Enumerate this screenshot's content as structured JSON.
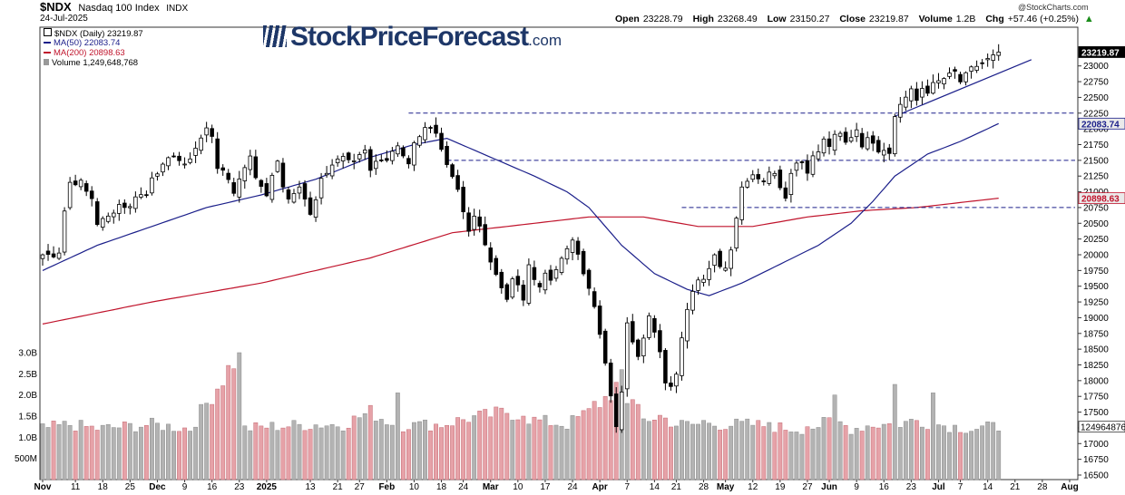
{
  "header": {
    "symbol": "$NDX",
    "name": "Nasdaq 100 Index",
    "exchange": "INDX",
    "date": "24-Jul-2025",
    "credit": "@StockCharts.com",
    "open_label": "Open",
    "open": "23228.79",
    "high_label": "High",
    "high": "23268.49",
    "low_label": "Low",
    "low": "23150.27",
    "close_label": "Close",
    "close": "23219.87",
    "volume_label": "Volume",
    "volume": "1.2B",
    "chg_label": "Chg",
    "chg": "+57.46 (+0.25%)",
    "chg_icon": "up-arrow-icon"
  },
  "watermark": {
    "main": "StockPriceForecast",
    "suffix": ".com"
  },
  "legend": [
    {
      "text": "$NDX (Daily) 23219.87",
      "color": "#000000"
    },
    {
      "text": "MA(50) 22083.74",
      "color": "#1b1f8a"
    },
    {
      "text": "MA(200) 20898.63",
      "color": "#c0142c"
    },
    {
      "text": "Volume 1,249,648,768",
      "color": "#000000"
    }
  ],
  "chart_data": {
    "type": "candlestick",
    "title": "$NDX (Daily)",
    "price_axis": {
      "min": 16500,
      "max": 23500,
      "ticks": [
        16500,
        16750,
        17000,
        17250,
        17500,
        17750,
        18000,
        18250,
        18500,
        18750,
        19000,
        19250,
        19500,
        19750,
        20000,
        20250,
        20500,
        20750,
        21000,
        21250,
        21500,
        21750,
        22000,
        22250,
        22500,
        22750,
        23000
      ]
    },
    "volume_axis": {
      "min": 0,
      "max": 3.3,
      "unit": "B",
      "ticks": [
        {
          "v": 0.5,
          "label": "500M"
        },
        {
          "v": 1.0,
          "label": "1.0B"
        },
        {
          "v": 1.5,
          "label": "1.5B"
        },
        {
          "v": 2.0,
          "label": "2.0B"
        },
        {
          "v": 2.5,
          "label": "2.5B"
        },
        {
          "v": 3.0,
          "label": "3.0B"
        }
      ]
    },
    "x_labels": [
      {
        "label": "Nov",
        "i": 0
      },
      {
        "label": "11",
        "i": 6
      },
      {
        "label": "18",
        "i": 11
      },
      {
        "label": "25",
        "i": 16
      },
      {
        "label": "Dec",
        "i": 21
      },
      {
        "label": "9",
        "i": 26
      },
      {
        "label": "16",
        "i": 31
      },
      {
        "label": "23",
        "i": 36
      },
      {
        "label": "2025",
        "i": 41
      },
      {
        "label": "13",
        "i": 49
      },
      {
        "label": "21",
        "i": 54
      },
      {
        "label": "27",
        "i": 58
      },
      {
        "label": "Feb",
        "i": 63
      },
      {
        "label": "10",
        "i": 68
      },
      {
        "label": "18",
        "i": 73
      },
      {
        "label": "24",
        "i": 77
      },
      {
        "label": "Mar",
        "i": 82
      },
      {
        "label": "10",
        "i": 87
      },
      {
        "label": "17",
        "i": 92
      },
      {
        "label": "24",
        "i": 97
      },
      {
        "label": "Apr",
        "i": 102
      },
      {
        "label": "7",
        "i": 107
      },
      {
        "label": "14",
        "i": 112
      },
      {
        "label": "21",
        "i": 116
      },
      {
        "label": "28",
        "i": 121
      },
      {
        "label": "May",
        "i": 125
      },
      {
        "label": "12",
        "i": 130
      },
      {
        "label": "19",
        "i": 135
      },
      {
        "label": "27",
        "i": 140
      },
      {
        "label": "Jun",
        "i": 144
      },
      {
        "label": "9",
        "i": 149
      },
      {
        "label": "16",
        "i": 154
      },
      {
        "label": "23",
        "i": 159
      },
      {
        "label": "Jul",
        "i": 164
      },
      {
        "label": "7",
        "i": 168
      },
      {
        "label": "14",
        "i": 173
      },
      {
        "label": "21",
        "i": 178
      },
      {
        "label": "28",
        "i": 183
      },
      {
        "label": "Aug",
        "i": 188
      }
    ],
    "close_anchors": [
      [
        0,
        20000
      ],
      [
        2,
        20000
      ],
      [
        3,
        20050
      ],
      [
        4,
        20700
      ],
      [
        5,
        21150
      ],
      [
        7,
        21150
      ],
      [
        8,
        21000
      ],
      [
        9,
        20900
      ],
      [
        10,
        20500
      ],
      [
        12,
        20600
      ],
      [
        14,
        20800
      ],
      [
        16,
        20750
      ],
      [
        17,
        20950
      ],
      [
        19,
        20950
      ],
      [
        20,
        21250
      ],
      [
        22,
        21400
      ],
      [
        24,
        21600
      ],
      [
        26,
        21400
      ],
      [
        28,
        21700
      ],
      [
        30,
        22000
      ],
      [
        31,
        21900
      ],
      [
        32,
        21400
      ],
      [
        34,
        21200
      ],
      [
        35,
        21000
      ],
      [
        36,
        21200
      ],
      [
        37,
        21400
      ],
      [
        38,
        21600
      ],
      [
        39,
        21200
      ],
      [
        40,
        21100
      ],
      [
        41,
        20950
      ],
      [
        42,
        21300
      ],
      [
        43,
        21450
      ],
      [
        44,
        21100
      ],
      [
        45,
        20850
      ],
      [
        47,
        21100
      ],
      [
        49,
        20650
      ],
      [
        50,
        20850
      ],
      [
        51,
        21200
      ],
      [
        53,
        21450
      ],
      [
        55,
        21600
      ],
      [
        57,
        21500
      ],
      [
        59,
        21650
      ],
      [
        60,
        21300
      ],
      [
        61,
        21500
      ],
      [
        63,
        21500
      ],
      [
        64,
        21650
      ],
      [
        65,
        21700
      ],
      [
        67,
        21450
      ],
      [
        68,
        21800
      ],
      [
        70,
        22000
      ],
      [
        71,
        22050
      ],
      [
        72,
        21950
      ],
      [
        73,
        21650
      ],
      [
        74,
        21400
      ],
      [
        75,
        21200
      ],
      [
        76,
        21000
      ],
      [
        77,
        20650
      ],
      [
        78,
        20350
      ],
      [
        79,
        20600
      ],
      [
        80,
        20450
      ],
      [
        81,
        20200
      ],
      [
        82,
        19900
      ],
      [
        83,
        19700
      ],
      [
        84,
        19500
      ],
      [
        85,
        19300
      ],
      [
        86,
        19600
      ],
      [
        87,
        19500
      ],
      [
        88,
        19300
      ],
      [
        89,
        19800
      ],
      [
        90,
        19650
      ],
      [
        91,
        19500
      ],
      [
        92,
        19700
      ],
      [
        93,
        19600
      ],
      [
        94,
        19800
      ],
      [
        95,
        19900
      ],
      [
        96,
        20100
      ],
      [
        97,
        20200
      ],
      [
        98,
        20000
      ],
      [
        99,
        19700
      ],
      [
        100,
        19500
      ],
      [
        101,
        19150
      ],
      [
        102,
        18700
      ],
      [
        103,
        18300
      ],
      [
        104,
        17800
      ],
      [
        105,
        17300
      ],
      [
        106,
        17800
      ],
      [
        107,
        18900
      ],
      [
        108,
        18600
      ],
      [
        109,
        18350
      ],
      [
        110,
        18700
      ],
      [
        111,
        19000
      ],
      [
        112,
        18800
      ],
      [
        113,
        18500
      ],
      [
        114,
        18000
      ],
      [
        115,
        17950
      ],
      [
        116,
        18100
      ],
      [
        117,
        18650
      ],
      [
        118,
        19100
      ],
      [
        119,
        19450
      ],
      [
        120,
        19600
      ],
      [
        121,
        19650
      ],
      [
        122,
        19800
      ],
      [
        123,
        20000
      ],
      [
        124,
        19850
      ],
      [
        125,
        19800
      ],
      [
        126,
        20100
      ],
      [
        127,
        20600
      ],
      [
        128,
        21050
      ],
      [
        129,
        21200
      ],
      [
        130,
        21300
      ],
      [
        131,
        21250
      ],
      [
        132,
        21150
      ],
      [
        133,
        21350
      ],
      [
        134,
        21300
      ],
      [
        135,
        21100
      ],
      [
        136,
        20900
      ],
      [
        137,
        21300
      ],
      [
        138,
        21500
      ],
      [
        139,
        21450
      ],
      [
        140,
        21300
      ],
      [
        141,
        21550
      ],
      [
        142,
        21650
      ],
      [
        143,
        21800
      ],
      [
        144,
        21700
      ],
      [
        145,
        21900
      ],
      [
        146,
        21950
      ],
      [
        147,
        21800
      ],
      [
        148,
        21900
      ],
      [
        149,
        21950
      ],
      [
        150,
        21750
      ],
      [
        151,
        21900
      ],
      [
        152,
        21800
      ],
      [
        153,
        21650
      ],
      [
        154,
        21700
      ],
      [
        155,
        21600
      ],
      [
        156,
        22200
      ],
      [
        157,
        22400
      ],
      [
        158,
        22500
      ],
      [
        159,
        22600
      ],
      [
        160,
        22450
      ],
      [
        161,
        22650
      ],
      [
        162,
        22600
      ],
      [
        163,
        22700
      ],
      [
        164,
        22750
      ],
      [
        165,
        22800
      ],
      [
        166,
        22850
      ],
      [
        167,
        22900
      ],
      [
        168,
        22750
      ],
      [
        169,
        22850
      ],
      [
        170,
        22950
      ],
      [
        171,
        23000
      ],
      [
        172,
        23050
      ],
      [
        173,
        23100
      ],
      [
        174,
        23150
      ],
      [
        175,
        23219.87
      ]
    ],
    "volume_anchors": [
      [
        0,
        1.2
      ],
      [
        5,
        1.3
      ],
      [
        10,
        1.2
      ],
      [
        20,
        1.3
      ],
      [
        27,
        1.2
      ],
      [
        36,
        3.0
      ],
      [
        37,
        1.2
      ],
      [
        41,
        1.25
      ],
      [
        50,
        1.3
      ],
      [
        55,
        1.3
      ],
      [
        60,
        1.6
      ],
      [
        65,
        1.25
      ],
      [
        67,
        1.3
      ],
      [
        73,
        1.3
      ],
      [
        78,
        1.45
      ],
      [
        81,
        1.5
      ],
      [
        85,
        1.6
      ],
      [
        90,
        1.4
      ],
      [
        96,
        1.3
      ],
      [
        100,
        1.6
      ],
      [
        102,
        1.8
      ],
      [
        104,
        2.05
      ],
      [
        106,
        2.2
      ],
      [
        108,
        1.8
      ],
      [
        110,
        1.4
      ],
      [
        113,
        1.5
      ],
      [
        116,
        1.3
      ],
      [
        120,
        1.3
      ],
      [
        125,
        1.3
      ],
      [
        130,
        1.3
      ],
      [
        137,
        1.2
      ],
      [
        140,
        1.2
      ],
      [
        145,
        1.4
      ],
      [
        148,
        1.2
      ],
      [
        152,
        1.3
      ],
      [
        156,
        1.3
      ],
      [
        160,
        1.4
      ],
      [
        164,
        1.3
      ],
      [
        170,
        1.2
      ],
      [
        175,
        1.25
      ]
    ],
    "volume_spikes": [
      [
        36,
        3.0
      ],
      [
        65,
        2.05
      ],
      [
        68,
        1.35
      ],
      [
        88,
        1.5
      ],
      [
        101,
        1.85
      ],
      [
        105,
        2.3
      ],
      [
        106,
        2.6
      ],
      [
        107,
        1.8
      ],
      [
        121,
        1.4
      ],
      [
        133,
        1.35
      ],
      [
        140,
        1.25
      ],
      [
        145,
        2.0
      ],
      [
        156,
        2.25
      ],
      [
        163,
        2.05
      ]
    ],
    "ma50_anchors": [
      [
        0,
        19750
      ],
      [
        10,
        20150
      ],
      [
        20,
        20450
      ],
      [
        30,
        20750
      ],
      [
        40,
        20950
      ],
      [
        50,
        21200
      ],
      [
        60,
        21550
      ],
      [
        68,
        21750
      ],
      [
        74,
        21850
      ],
      [
        82,
        21550
      ],
      [
        90,
        21250
      ],
      [
        96,
        21000
      ],
      [
        100,
        20750
      ],
      [
        106,
        20150
      ],
      [
        112,
        19700
      ],
      [
        118,
        19450
      ],
      [
        122,
        19350
      ],
      [
        128,
        19550
      ],
      [
        135,
        19850
      ],
      [
        142,
        20150
      ],
      [
        148,
        20500
      ],
      [
        152,
        20850
      ],
      [
        156,
        21250
      ],
      [
        162,
        21600
      ],
      [
        168,
        21800
      ],
      [
        175,
        22083.74
      ]
    ],
    "ma200_anchors": [
      [
        0,
        18900
      ],
      [
        20,
        19250
      ],
      [
        40,
        19550
      ],
      [
        60,
        19950
      ],
      [
        75,
        20350
      ],
      [
        90,
        20500
      ],
      [
        100,
        20600
      ],
      [
        110,
        20600
      ],
      [
        120,
        20450
      ],
      [
        130,
        20450
      ],
      [
        140,
        20600
      ],
      [
        150,
        20700
      ],
      [
        160,
        20750
      ],
      [
        175,
        20898.63
      ]
    ],
    "horizontal_levels": [
      {
        "value": 22250,
        "from": 67,
        "to": 189
      },
      {
        "value": 21500,
        "from": 74,
        "to": 189
      },
      {
        "value": 20750,
        "from": 117,
        "to": 189
      }
    ],
    "trendline": {
      "from": [
        156,
        22200
      ],
      "to": [
        181,
        23100
      ]
    },
    "price_label_boxes": [
      {
        "value": 23219.87,
        "label": "23219.87",
        "style": "dark"
      },
      {
        "value": 22083.74,
        "label": "22083.74",
        "style": "blue"
      },
      {
        "value": 20898.63,
        "label": "20898.63",
        "style": "red"
      }
    ],
    "volume_label": {
      "value": 1.25,
      "label": "1249648768"
    }
  }
}
